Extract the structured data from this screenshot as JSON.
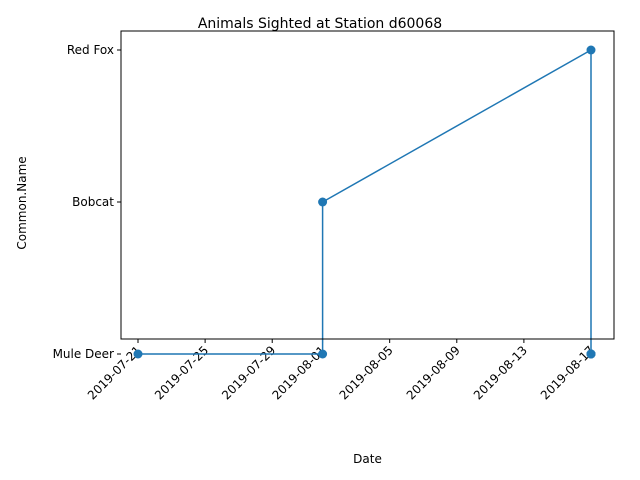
{
  "chart_data": {
    "type": "line",
    "title": "Animals Sighted at Station d60068",
    "xlabel": "Date",
    "ylabel": "Common.Name",
    "x_ticks": [
      "2019-07-21",
      "2019-07-25",
      "2019-07-29",
      "2019-08-01",
      "2019-08-05",
      "2019-08-09",
      "2019-08-13",
      "2019-08-17"
    ],
    "y_categories": [
      "Mule Deer",
      "Bobcat",
      "Red Fox"
    ],
    "xlim": [
      "2019-07-20",
      "2019-08-18"
    ],
    "series": [
      {
        "x": [
          "2019-07-21",
          "2019-08-01",
          "2019-08-01",
          "2019-08-17",
          "2019-08-17",
          "2019-08-17",
          "2019-08-17",
          "2019-08-17"
        ],
        "y": [
          "Mule Deer",
          "Mule Deer",
          "Bobcat",
          "Red Fox",
          "Mule Deer",
          "Mule Deer",
          "Mule Deer",
          "Mule Deer"
        ]
      }
    ],
    "color": "#1f77b4",
    "grid": false,
    "legend": "none"
  }
}
